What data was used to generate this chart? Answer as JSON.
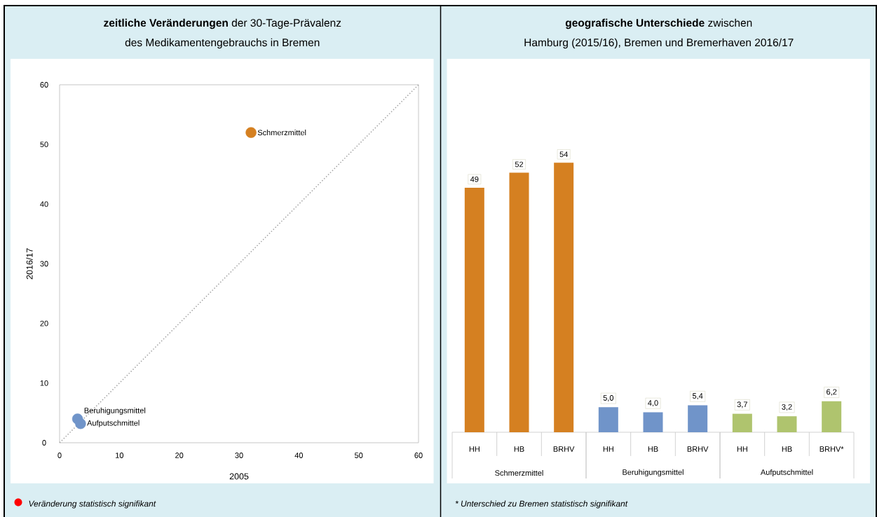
{
  "chart_data": [
    {
      "type": "scatter",
      "title": "**zeitliche Veränderungen** der 30-Tage-Prävalenz",
      "subtitle": "des Medikamentengebrauchs in Bremen",
      "xlabel": "2005",
      "ylabel": "2016/17",
      "xlim": [
        0,
        60
      ],
      "ylim": [
        0,
        60
      ],
      "xticks": [
        0,
        10,
        20,
        30,
        40,
        50,
        60
      ],
      "yticks": [
        0,
        10,
        20,
        30,
        40,
        50,
        60
      ],
      "marker": "circle",
      "series": [
        {
          "type": "line",
          "x": [
            0,
            60
          ],
          "values": [
            0,
            60
          ],
          "color": "#a6a6a6",
          "line_style": "dotted",
          "marker": "none"
        },
        {
          "name": "Schmerzmittel",
          "color": "#d58021",
          "x": [
            32
          ],
          "values": [
            52
          ]
        },
        {
          "name": "Beruhigungsmittel",
          "color": "#7094c9",
          "x": [
            3
          ],
          "values": [
            4
          ]
        },
        {
          "name": "Aufputschmittel",
          "color": "#7094c9",
          "x": [
            3.5
          ],
          "values": [
            3.2
          ]
        }
      ],
      "annotations": [
        "Veränderung statistisch signifikant"
      ]
    },
    {
      "type": "bar",
      "title": "**geografische Unterschiede** zwischen",
      "subtitle": "Hamburg (2015/16), Bremen und Bremerhaven 2016/17",
      "categories": [
        "HH",
        "HB",
        "BRHV"
      ],
      "xlabel": "Schmerzmittel",
      "color": "#d58021",
      "values": [
        49,
        52,
        54
      ],
      "value_labels": [
        "49",
        "52",
        "54"
      ],
      "annotations": [
        "* Unterschied zu Bremen statistisch signifikant"
      ]
    },
    {
      "type": "bar",
      "categories": [
        "HH",
        "HB",
        "BRHV"
      ],
      "xlabel": "Beruhigungsmittel",
      "color": "#7094c9",
      "values": [
        5.0,
        4.0,
        5.4
      ],
      "value_labels": [
        "5,0",
        "4,0",
        "5,4"
      ]
    },
    {
      "type": "bar",
      "categories": [
        "HH",
        "HB",
        "BRHV*"
      ],
      "xlabel": "Aufputschmittel",
      "color": "#afc46e",
      "values": [
        3.7,
        3.2,
        6.2
      ],
      "value_labels": [
        "3,7",
        "3,2",
        "6,2"
      ]
    }
  ]
}
